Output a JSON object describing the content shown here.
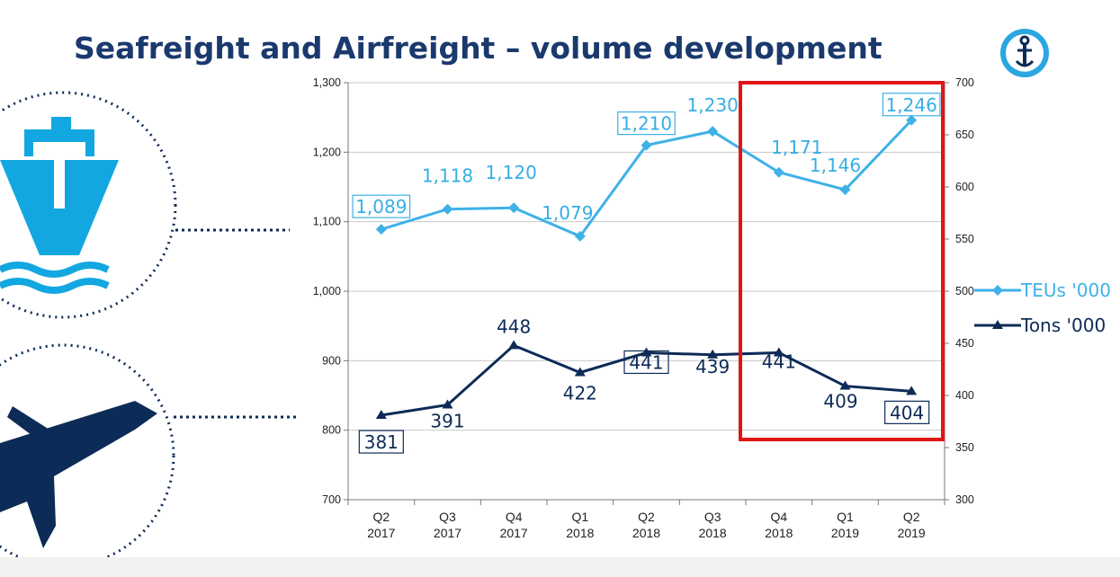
{
  "title": "Seafreight and Airfreight – volume development",
  "icons": {
    "logo": "anchor-logo-icon",
    "sea": "ship-icon",
    "air": "airplane-icon"
  },
  "colors": {
    "teu": "#3eb1e8",
    "tons": "#0d2b57",
    "highlight": "#e21515",
    "title": "#1a3a6e"
  },
  "chart_data": {
    "type": "line",
    "categories": [
      "Q2\n2017",
      "Q3\n2017",
      "Q4\n2017",
      "Q1\n2018",
      "Q2\n2018",
      "Q3\n2018",
      "Q4\n2018",
      "Q1\n2019",
      "Q2\n2019"
    ],
    "series": [
      {
        "name": "TEUs '000",
        "axis": "left",
        "values": [
          1089,
          1118,
          1120,
          1079,
          1210,
          1230,
          1171,
          1146,
          1246
        ],
        "labels": [
          "1,089",
          "1,118",
          "1,120",
          "1,079",
          "1,210",
          "1,230",
          "1,171",
          "1,146",
          "1,246"
        ],
        "boxed": [
          true,
          false,
          false,
          false,
          true,
          false,
          false,
          false,
          true
        ]
      },
      {
        "name": "Tons '000",
        "axis": "right",
        "values": [
          381,
          391,
          448,
          422,
          441,
          439,
          441,
          409,
          404
        ],
        "labels": [
          "381",
          "391",
          "448",
          "422",
          "441",
          "439",
          "441",
          "409",
          "404"
        ],
        "boxed": [
          true,
          false,
          false,
          false,
          true,
          false,
          false,
          false,
          true
        ]
      }
    ],
    "y_left": {
      "min": 700,
      "max": 1300,
      "ticks": [
        "700",
        "800",
        "900",
        "1,000",
        "1,100",
        "1,200",
        "1,300"
      ]
    },
    "y_right": {
      "min": 300,
      "max": 700,
      "ticks": [
        "300",
        "350",
        "400",
        "450",
        "500",
        "550",
        "600",
        "650",
        "700"
      ]
    },
    "grid": "horizontal",
    "legend": "right",
    "highlight": {
      "from_category": "Q4\n2018",
      "to_category": "Q2\n2019"
    }
  }
}
